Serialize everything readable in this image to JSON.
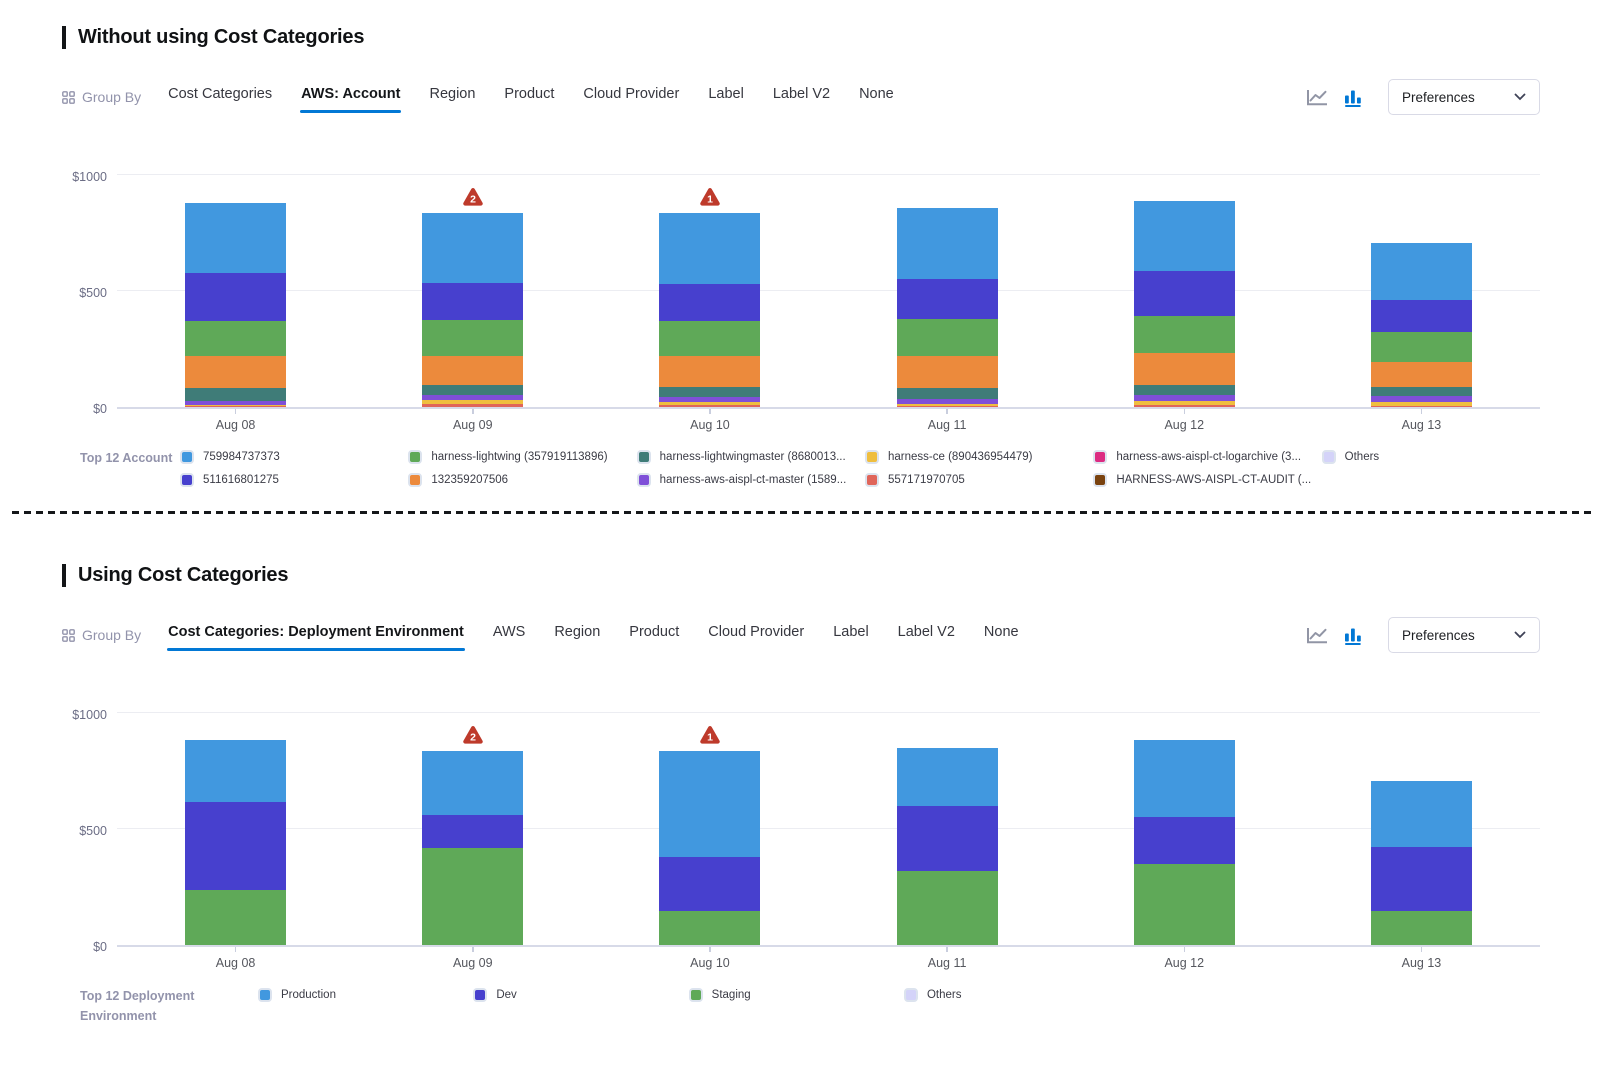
{
  "sections": [
    {
      "title": "Without using Cost Categories",
      "toolbar": {
        "group_by_label": "Group By",
        "tabs": [
          {
            "label": "Cost Categories",
            "active": false
          },
          {
            "label": "AWS: Account",
            "active": true
          },
          {
            "label": "Region",
            "active": false
          },
          {
            "label": "Product",
            "active": false
          },
          {
            "label": "Cloud Provider",
            "active": false
          },
          {
            "label": "Label",
            "active": false
          },
          {
            "label": "Label V2",
            "active": false
          },
          {
            "label": "None",
            "active": false
          }
        ],
        "chart_toggles": [
          {
            "name": "line-chart",
            "active": false
          },
          {
            "name": "bar-chart",
            "active": true
          }
        ],
        "preferences_label": "Preferences"
      },
      "legend": {
        "title": "Top 12 Account"
      },
      "chart_data": {
        "type": "bar",
        "stacked": true,
        "categories": [
          "Aug 08",
          "Aug 09",
          "Aug 10",
          "Aug 11",
          "Aug 12",
          "Aug 13"
        ],
        "series": [
          {
            "name": "759984737373",
            "color": "#4198DF",
            "values": [
              303,
              302,
              305,
              304,
              302,
              246
            ]
          },
          {
            "name": "511616801275",
            "color": "#4740CE",
            "values": [
              204,
              161,
              162,
              174,
              193,
              141
            ]
          },
          {
            "name": "harness-lightwing (357919113896)",
            "color": "#5FA958",
            "values": [
              154,
              154,
              150,
              161,
              161,
              127
            ]
          },
          {
            "name": "132359207506",
            "color": "#EC8A3C",
            "values": [
              138,
              127,
              131,
              138,
              134,
              109
            ]
          },
          {
            "name": "harness-lightwingmaster (8680013...",
            "color": "#3F7C78",
            "values": [
              53,
              43,
              43,
              46,
              46,
              37
            ]
          },
          {
            "name": "harness-aws-aispl-ct-master (1589...",
            "color": "#7F4FD8",
            "values": [
              19,
              22,
              24,
              22,
              27,
              26
            ]
          },
          {
            "name": "harness-ce (890436954479)",
            "color": "#EFBE3F",
            "values": [
              5,
              17,
              14,
              8,
              17,
              20
            ]
          },
          {
            "name": "557171970705",
            "color": "#E0655A",
            "values": [
              4,
              12,
              7,
              4,
              7,
              3
            ]
          },
          {
            "name": "harness-aws-aispl-ct-logarchive (3...",
            "color": "#DC2C82",
            "values": [
              0,
              0,
              0,
              0,
              0,
              0
            ]
          },
          {
            "name": "HARNESS-AWS-AISPL-CT-AUDIT (...",
            "color": "#7A430F",
            "values": [
              0,
              0,
              0,
              0,
              0,
              0
            ]
          },
          {
            "name": "Others",
            "color": "#D4D3F9",
            "values": [
              0,
              0,
              0,
              0,
              0,
              0
            ]
          }
        ],
        "y_ticks": [
          {
            "value": 0,
            "label": "$0"
          },
          {
            "value": 500,
            "label": "$500"
          },
          {
            "value": 1000,
            "label": "$1000"
          }
        ],
        "ylim": [
          0,
          1000
        ],
        "grid": true,
        "legend_position": "bottom",
        "annotations": [
          {
            "category": "Aug 09",
            "badge": "2"
          },
          {
            "category": "Aug 10",
            "badge": "1"
          }
        ]
      }
    },
    {
      "title": "Using Cost Categories",
      "toolbar": {
        "group_by_label": "Group By",
        "tabs": [
          {
            "label": "Cost Categories: Deployment Environment",
            "active": true
          },
          {
            "label": "AWS",
            "active": false
          },
          {
            "label": "Region",
            "active": false
          },
          {
            "label": "Product",
            "active": false
          },
          {
            "label": "Cloud Provider",
            "active": false
          },
          {
            "label": "Label",
            "active": false
          },
          {
            "label": "Label V2",
            "active": false
          },
          {
            "label": "None",
            "active": false
          }
        ],
        "chart_toggles": [
          {
            "name": "line-chart",
            "active": false
          },
          {
            "name": "bar-chart",
            "active": true
          }
        ],
        "preferences_label": "Preferences"
      },
      "legend": {
        "title": "Top 12 Deployment Environment"
      },
      "chart_data": {
        "type": "bar",
        "stacked": true,
        "categories": [
          "Aug 08",
          "Aug 09",
          "Aug 10",
          "Aug 11",
          "Aug 12",
          "Aug 13"
        ],
        "series": [
          {
            "name": "Production",
            "color": "#4198DF",
            "values": [
              266,
              274,
              458,
              250,
              330,
              284
            ]
          },
          {
            "name": "Dev",
            "color": "#4740CE",
            "values": [
              379,
              143,
              230,
              280,
              204,
              276
            ]
          },
          {
            "name": "Staging",
            "color": "#5FA958",
            "values": [
              237,
              419,
              148,
              321,
              350,
              146
            ]
          },
          {
            "name": "Others",
            "color": "#D4D3F9",
            "values": [
              0,
              0,
              0,
              0,
              0,
              0
            ]
          }
        ],
        "y_ticks": [
          {
            "value": 0,
            "label": "$0"
          },
          {
            "value": 500,
            "label": "$500"
          },
          {
            "value": 1000,
            "label": "$1000"
          }
        ],
        "ylim": [
          0,
          1000
        ],
        "grid": true,
        "legend_position": "bottom",
        "annotations": [
          {
            "category": "Aug 09",
            "badge": "2"
          },
          {
            "category": "Aug 10",
            "badge": "1"
          }
        ]
      }
    }
  ],
  "accent_color": "#0278D5",
  "badge_color": "#BE3A2B"
}
